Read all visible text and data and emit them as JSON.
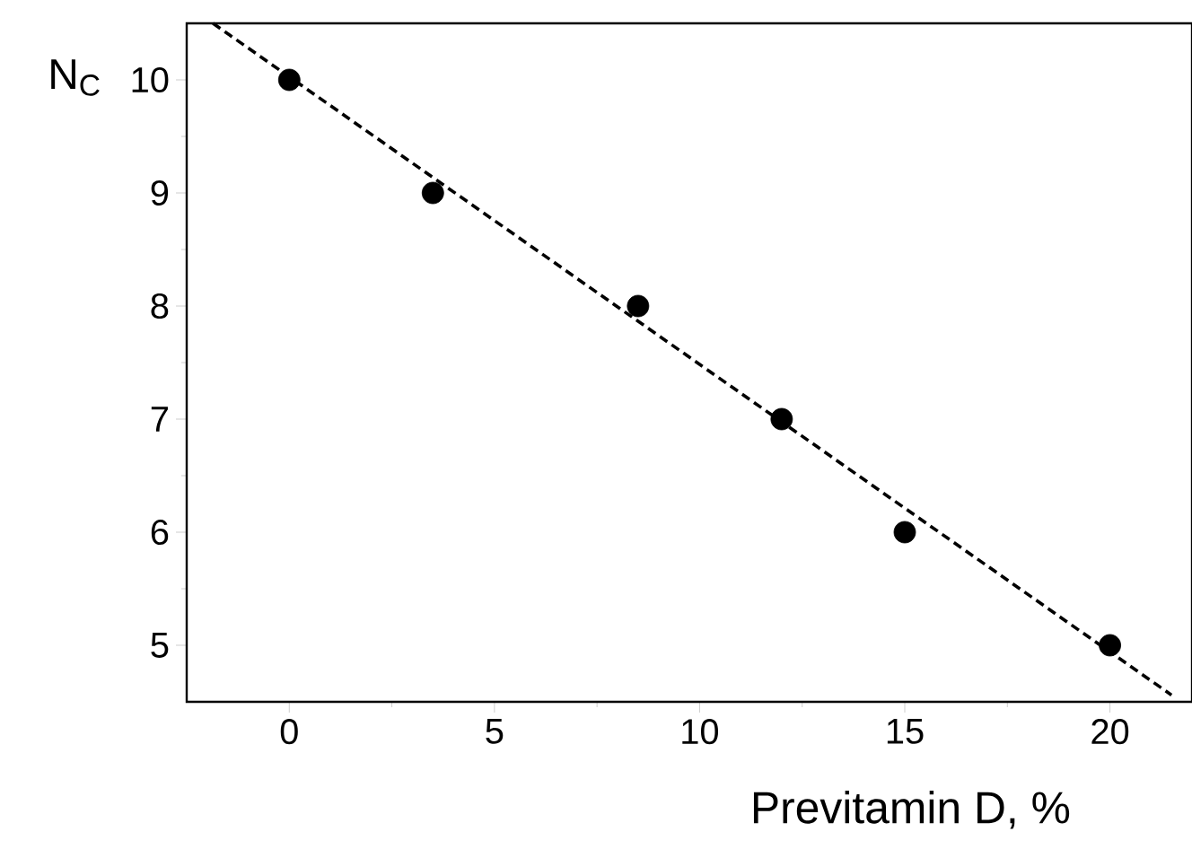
{
  "chart_data": {
    "type": "scatter",
    "xlabel": "Previtamin D, %",
    "ylabel": "N$_{C}$",
    "xlim": [
      -2.5,
      22
    ],
    "ylim": [
      4.5,
      10.5
    ],
    "xticks": [
      0,
      5,
      10,
      15,
      20
    ],
    "yticks": [
      5,
      6,
      7,
      8,
      9,
      10
    ],
    "grid": false,
    "series": [
      {
        "color": "#000000",
        "marker": "circle",
        "x": [
          0,
          3.5,
          8.5,
          12,
          15,
          20
        ],
        "values": [
          10,
          9,
          8,
          7,
          6,
          5
        ]
      },
      {
        "type": "line",
        "color": "#000000",
        "marker": "none",
        "line_style": "dashed",
        "x": [
          -1.86,
          21.5
        ],
        "values": [
          10.5,
          4.56
        ]
      }
    ]
  }
}
